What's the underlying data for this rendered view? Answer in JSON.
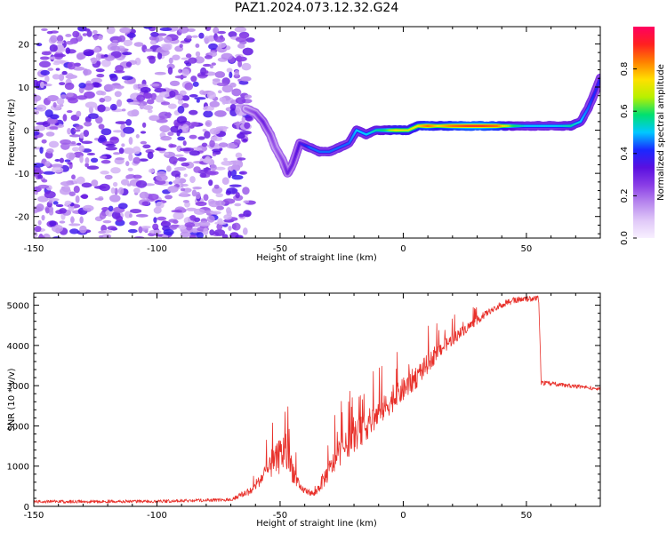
{
  "title": "PAZ1.2024.073.12.32.G24",
  "colors": {
    "snr_line": "#e8302a",
    "cmap": [
      "#f8f0ff",
      "#e0c8f8",
      "#b888ee",
      "#8a3ee6",
      "#5a10e0",
      "#1a28ff",
      "#00c8ff",
      "#00e070",
      "#b8f000",
      "#ffe000",
      "#ff8000",
      "#ff2020",
      "#ff0060"
    ]
  },
  "chart_data": [
    {
      "type": "heatmap",
      "xlabel": "Height of straight line (km)",
      "ylabel": "Frequency (Hz)",
      "xlim": [
        -150,
        80
      ],
      "ylim": [
        -25,
        24
      ],
      "x_ticks": [
        -150,
        -100,
        -50,
        0,
        50
      ],
      "y_ticks": [
        -20,
        -10,
        0,
        10,
        20
      ],
      "colorbar": {
        "label": "Normalized spectral amplitude",
        "range": [
          0,
          1
        ],
        "ticks": [
          "0.0",
          "0.2",
          "0.4",
          "0.6",
          "0.8"
        ]
      },
      "noise_region_x": [
        -150,
        -68
      ],
      "ridge": [
        {
          "x": -64,
          "f": 5,
          "a": 0.2
        },
        {
          "x": -60,
          "f": 4,
          "a": 0.25
        },
        {
          "x": -57,
          "f": 2,
          "a": 0.3
        },
        {
          "x": -54,
          "f": -1,
          "a": 0.25
        },
        {
          "x": -52,
          "f": -4,
          "a": 0.22
        },
        {
          "x": -49,
          "f": -7,
          "a": 0.25
        },
        {
          "x": -47,
          "f": -10,
          "a": 0.3
        },
        {
          "x": -45,
          "f": -8,
          "a": 0.3
        },
        {
          "x": -42,
          "f": -3,
          "a": 0.35
        },
        {
          "x": -38,
          "f": -4,
          "a": 0.45
        },
        {
          "x": -34,
          "f": -5,
          "a": 0.45
        },
        {
          "x": -30,
          "f": -5,
          "a": 0.45
        },
        {
          "x": -26,
          "f": -4,
          "a": 0.45
        },
        {
          "x": -22,
          "f": -3,
          "a": 0.45
        },
        {
          "x": -19,
          "f": 0,
          "a": 0.5
        },
        {
          "x": -15,
          "f": -1,
          "a": 0.5
        },
        {
          "x": -11,
          "f": 0,
          "a": 0.55
        },
        {
          "x": -7,
          "f": 0,
          "a": 0.6
        },
        {
          "x": -3,
          "f": 0,
          "a": 0.75
        },
        {
          "x": 2,
          "f": 0,
          "a": 0.7
        },
        {
          "x": 6,
          "f": 1,
          "a": 0.75
        },
        {
          "x": 10,
          "f": 1,
          "a": 0.85
        },
        {
          "x": 14,
          "f": 1,
          "a": 0.75
        },
        {
          "x": 20,
          "f": 1,
          "a": 0.85
        },
        {
          "x": 26,
          "f": 1,
          "a": 0.9
        },
        {
          "x": 32,
          "f": 1,
          "a": 0.9
        },
        {
          "x": 38,
          "f": 1,
          "a": 0.85
        },
        {
          "x": 44,
          "f": 1,
          "a": 0.6
        },
        {
          "x": 50,
          "f": 1,
          "a": 0.5
        },
        {
          "x": 56,
          "f": 1,
          "a": 0.5
        },
        {
          "x": 62,
          "f": 1,
          "a": 0.5
        },
        {
          "x": 68,
          "f": 1,
          "a": 0.55
        },
        {
          "x": 72,
          "f": 2,
          "a": 0.5
        },
        {
          "x": 75,
          "f": 5,
          "a": 0.45
        },
        {
          "x": 78,
          "f": 9,
          "a": 0.4
        },
        {
          "x": 80,
          "f": 12,
          "a": 0.4
        }
      ]
    },
    {
      "type": "line",
      "xlabel": "Height of straight line (km)",
      "ylabel": "SNR (10 * v/v)",
      "xlim": [
        -150,
        80
      ],
      "ylim": [
        0,
        5300
      ],
      "x_ticks": [
        -150,
        -100,
        -50,
        0,
        50
      ],
      "y_ticks": [
        0,
        1000,
        2000,
        3000,
        4000,
        5000
      ],
      "envelope": [
        {
          "x": -150,
          "base": 100,
          "noise": 80
        },
        {
          "x": -100,
          "base": 110,
          "noise": 80
        },
        {
          "x": -70,
          "base": 150,
          "noise": 80
        },
        {
          "x": -62,
          "base": 350,
          "noise": 200
        },
        {
          "x": -55,
          "base": 900,
          "noise": 900
        },
        {
          "x": -48,
          "base": 1400,
          "noise": 2200
        },
        {
          "x": -42,
          "base": 450,
          "noise": 400
        },
        {
          "x": -36,
          "base": 300,
          "noise": 250
        },
        {
          "x": -32,
          "base": 700,
          "noise": 900
        },
        {
          "x": -25,
          "base": 1400,
          "noise": 1300
        },
        {
          "x": -15,
          "base": 2000,
          "noise": 1500
        },
        {
          "x": -5,
          "base": 2600,
          "noise": 1200
        },
        {
          "x": 5,
          "base": 3200,
          "noise": 1200
        },
        {
          "x": 15,
          "base": 3900,
          "noise": 700
        },
        {
          "x": 25,
          "base": 4400,
          "noise": 500
        },
        {
          "x": 35,
          "base": 4850,
          "noise": 300
        },
        {
          "x": 45,
          "base": 5100,
          "noise": 150
        },
        {
          "x": 55,
          "base": 5150,
          "noise": 120
        },
        {
          "x": 56,
          "base": 3050,
          "noise": 120
        },
        {
          "x": 65,
          "base": 3000,
          "noise": 100
        },
        {
          "x": 80,
          "base": 2900,
          "noise": 100
        }
      ]
    }
  ]
}
